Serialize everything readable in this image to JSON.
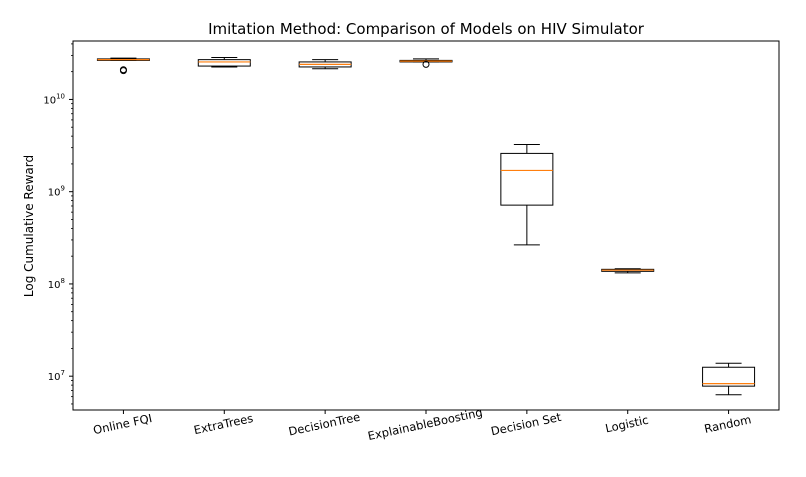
{
  "chart_data": {
    "type": "boxplot",
    "title": "Imitation Method: Comparison of Models on HIV Simulator",
    "xlabel": "",
    "ylabel": "Log Cumulative Reward",
    "yscale": "log",
    "ylim": [
      4300000,
      43000000000
    ],
    "yticks": [
      {
        "value": 10000000,
        "base": "10",
        "exp": "7"
      },
      {
        "value": 100000000,
        "base": "10",
        "exp": "8"
      },
      {
        "value": 1000000000,
        "base": "10",
        "exp": "9"
      },
      {
        "value": 10000000000,
        "base": "10",
        "exp": "10"
      }
    ],
    "categories": [
      "Online FQI",
      "ExtraTrees",
      "DecisionTree",
      "ExplainableBoosting",
      "Decision Set",
      "Logistic",
      "Random"
    ],
    "boxes": [
      {
        "whislo": 26500000000,
        "q1": 26500000000,
        "med": 27000000000,
        "q3": 27500000000,
        "whishi": 28000000000,
        "fliers": [
          20500000000,
          21000000000
        ]
      },
      {
        "whislo": 22500000000,
        "q1": 23000000000,
        "med": 25500000000,
        "q3": 27000000000,
        "whishi": 28500000000,
        "fliers": []
      },
      {
        "whislo": 21500000000,
        "q1": 22500000000,
        "med": 24000000000,
        "q3": 25500000000,
        "whishi": 27000000000,
        "fliers": []
      },
      {
        "whislo": 25500000000,
        "q1": 25500000000,
        "med": 26000000000,
        "q3": 26500000000,
        "whishi": 27500000000,
        "fliers": [
          24000000000
        ]
      },
      {
        "whislo": 265000000,
        "q1": 715000000,
        "med": 1700000000,
        "q3": 2600000000,
        "whishi": 3250000000,
        "fliers": []
      },
      {
        "whislo": 132000000,
        "q1": 137000000,
        "med": 141000000,
        "q3": 144000000,
        "whishi": 146000000,
        "fliers": []
      },
      {
        "whislo": 6300000,
        "q1": 7800000,
        "med": 8300000,
        "q3": 12500000,
        "whishi": 13800000,
        "fliers": []
      }
    ],
    "colors": {
      "box": "#000000",
      "median": "#ff7f0e",
      "flier": "#000000"
    },
    "grid": false,
    "legend": null
  }
}
